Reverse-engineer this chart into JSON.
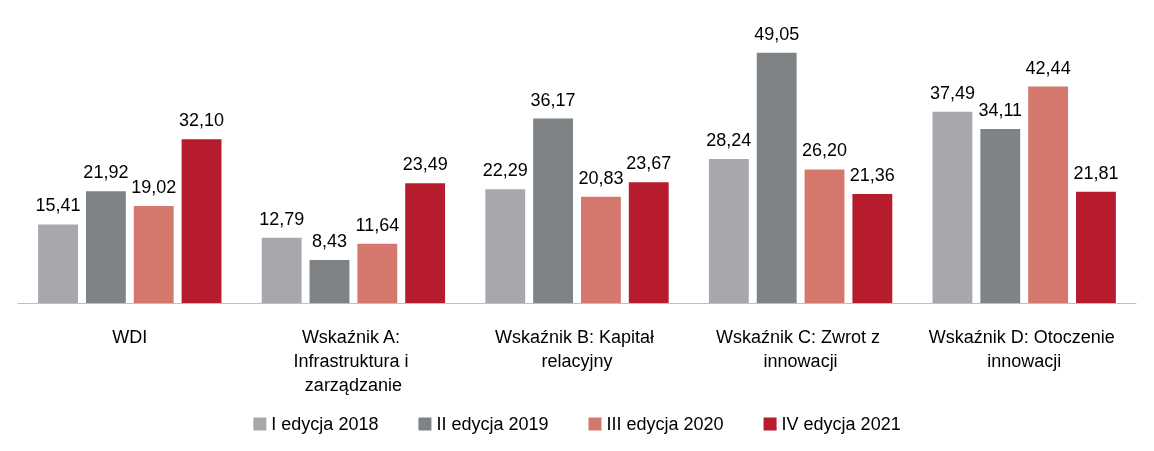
{
  "chart_data": {
    "type": "bar",
    "categories": [
      "WDI",
      "Wskaźnik A: Infrastruktura i zarządzanie",
      "Wskaźnik B: Kapitał relacyjny",
      "Wskaźnik C: Zwrot z innowacji",
      "Wskaźnik D: Otoczenie innowacji"
    ],
    "series": [
      {
        "name": "I edycja 2018",
        "color": "#a6a8ab",
        "values": [
          15.41,
          12.79,
          22.29,
          28.24,
          37.49
        ],
        "value_labels": [
          "15,41",
          "12,79",
          "22,29",
          "28,24",
          "37,49"
        ]
      },
      {
        "name": "II edycja 2019",
        "color": "#7f8385",
        "values": [
          21.92,
          8.43,
          36.17,
          49.05,
          34.11
        ],
        "value_labels": [
          "21,92",
          "8,43",
          "36,17",
          "49,05",
          "34,11"
        ]
      },
      {
        "name": "III edycja 2020",
        "color": "#d4786d",
        "values": [
          19.02,
          11.64,
          20.83,
          26.2,
          42.44
        ],
        "value_labels": [
          "19,02",
          "11,64",
          "20,83",
          "26,20",
          "42,44"
        ]
      },
      {
        "name": "IV edycja 2021",
        "color": "#b61c2b",
        "values": [
          32.1,
          23.49,
          23.67,
          21.36,
          21.81
        ],
        "value_labels": [
          "32,10",
          "23,49",
          "23,67",
          "21,36",
          "21,81"
        ]
      }
    ],
    "legend": "bottom"
  }
}
